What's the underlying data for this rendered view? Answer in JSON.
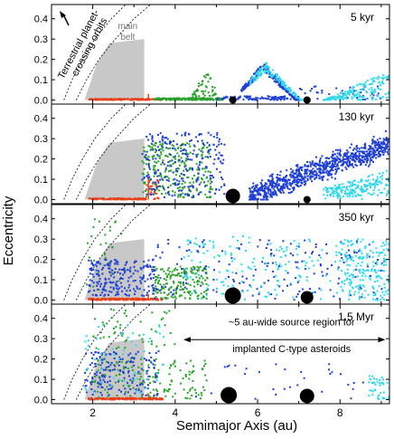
{
  "chart_data": {
    "type": "scatter",
    "xlabel": "Semimajor Axis (au)",
    "ylabel": "Eccentricity",
    "xlim": [
      1,
      9.2
    ],
    "ylim": [
      -0.02,
      0.47
    ],
    "x_ticks": [
      "2",
      "4",
      "6",
      "8"
    ],
    "x_tick_values": [
      2,
      4,
      6,
      8
    ],
    "y_ticks": [
      "0.0",
      "0.1",
      "0.2",
      "0.3",
      "0.4"
    ],
    "y_tick_values": [
      0,
      0.1,
      0.2,
      0.3,
      0.4
    ],
    "colors": {
      "red": "#e8401a",
      "green": "#2ca02c",
      "blue": "#1f3fd4",
      "cyan": "#30d8e8",
      "belt": "#c8c8c8"
    },
    "belt_label": [
      "main",
      "belt"
    ],
    "terrestrial_label": [
      "Terrestrial planet-",
      "crossing orbits"
    ],
    "source_region_label": [
      "~5 au-wide source region for",
      "implanted C-type asteroids"
    ],
    "source_region_range": [
      4.2,
      9.1
    ],
    "crossing_curves": [
      [
        [
          1.3,
          0.0
        ],
        [
          1.5,
          0.1
        ],
        [
          1.75,
          0.2
        ],
        [
          2.05,
          0.3
        ],
        [
          2.45,
          0.4
        ],
        [
          2.8,
          0.47
        ]
      ],
      [
        [
          1.6,
          0.0
        ],
        [
          1.85,
          0.1
        ],
        [
          2.15,
          0.2
        ],
        [
          2.55,
          0.3
        ],
        [
          3.0,
          0.4
        ],
        [
          3.4,
          0.47
        ]
      ]
    ],
    "belt_polygon": [
      [
        1.8,
        0.0
      ],
      [
        2.1,
        0.18
      ],
      [
        2.4,
        0.28
      ],
      [
        3.25,
        0.3
      ],
      [
        3.25,
        0.0
      ]
    ],
    "panels": [
      {
        "label": "5 kyr",
        "planets": [
          {
            "a": 5.4,
            "size": 4
          },
          {
            "a": 7.2,
            "size": 4
          }
        ],
        "max_label_e": 0.45
      },
      {
        "label": "130 kyr",
        "planets": [
          {
            "a": 5.4,
            "size": 8
          },
          {
            "a": 7.2,
            "size": 4
          }
        ],
        "max_label_e": 0.45
      },
      {
        "label": "350 kyr",
        "planets": [
          {
            "a": 5.4,
            "size": 9
          },
          {
            "a": 7.2,
            "size": 7
          }
        ],
        "max_label_e": 0.45
      },
      {
        "label": "1.5 Myr",
        "planets": [
          {
            "a": 5.3,
            "size": 9
          },
          {
            "a": 7.2,
            "size": 8
          }
        ],
        "max_label_e": 0.45
      }
    ],
    "series": [
      {
        "color": "red",
        "region": "a 1.8–3.7 au, e≈0.0"
      },
      {
        "color": "green",
        "region": "a 3.5–5.2 au"
      },
      {
        "color": "blue",
        "region": "a 4.5–9.2 au"
      },
      {
        "color": "cyan",
        "region": "a 6.5–9.2 au"
      }
    ]
  }
}
